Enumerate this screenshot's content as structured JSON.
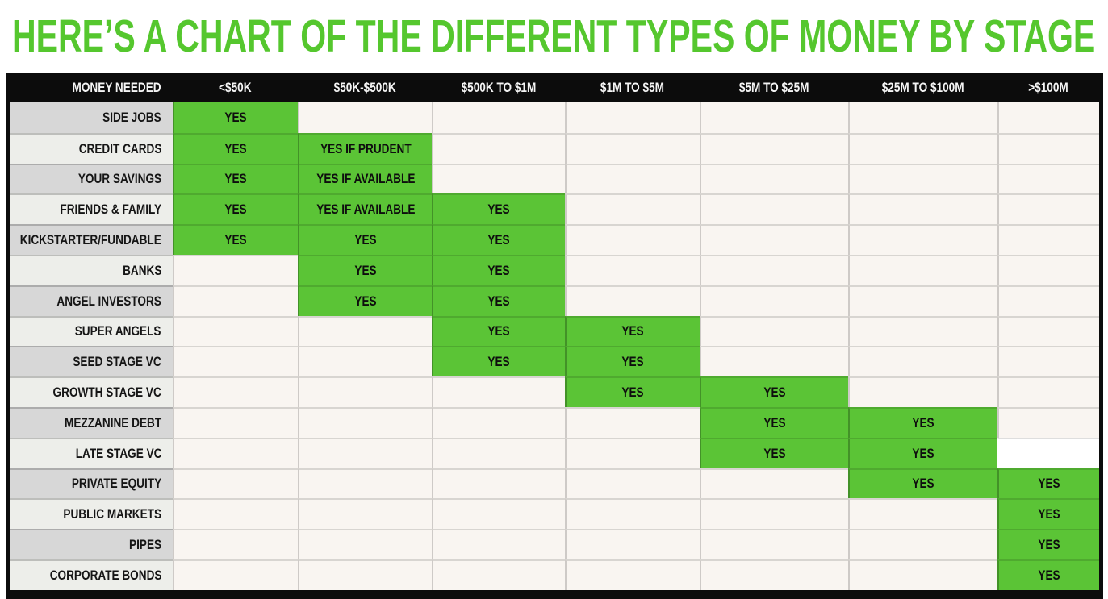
{
  "title": "HERE’S A CHART OF THE DIFFERENT TYPES OF MONEY BY STAGE",
  "colors": {
    "title_green": "#55c72e",
    "cell_green": "#5bc436",
    "header_bg": "#0c0c0c",
    "cell_bg": "#f9f5f1",
    "label_odd": "#d7d7d7",
    "label_even": "#edeeea"
  },
  "chart_data": {
    "type": "table",
    "title": "HERE’S A CHART OF THE DIFFERENT TYPES OF MONEY BY STAGE",
    "columns": [
      "MONEY NEEDED",
      "<$50K",
      "$50K-$500K",
      "$500K TO $1M",
      "$1M TO $5M",
      "$5M TO $25M",
      "$25M TO $100M",
      ">$100M"
    ],
    "rows": [
      {
        "label": "SIDE JOBS",
        "values": [
          "YES",
          "",
          "",
          "",
          "",
          "",
          ""
        ]
      },
      {
        "label": "CREDIT CARDS",
        "values": [
          "YES",
          "YES IF PRUDENT",
          "",
          "",
          "",
          "",
          ""
        ]
      },
      {
        "label": "YOUR SAVINGS",
        "values": [
          "YES",
          "YES IF AVAILABLE",
          "",
          "",
          "",
          "",
          ""
        ]
      },
      {
        "label": "FRIENDS & FAMILY",
        "values": [
          "YES",
          "YES IF AVAILABLE",
          "YES",
          "",
          "",
          "",
          ""
        ]
      },
      {
        "label": "KICKSTARTER/FUNDABLE",
        "values": [
          "YES",
          "YES",
          "YES",
          "",
          "",
          "",
          ""
        ]
      },
      {
        "label": "BANKS",
        "values": [
          "",
          "YES",
          "YES",
          "",
          "",
          "",
          ""
        ]
      },
      {
        "label": "ANGEL INVESTORS",
        "values": [
          "",
          "YES",
          "YES",
          "",
          "",
          "",
          ""
        ]
      },
      {
        "label": "SUPER ANGELS",
        "values": [
          "",
          "",
          "YES",
          "YES",
          "",
          "",
          ""
        ]
      },
      {
        "label": "SEED STAGE VC",
        "values": [
          "",
          "",
          "YES",
          "YES",
          "",
          "",
          ""
        ]
      },
      {
        "label": "GROWTH STAGE VC",
        "values": [
          "",
          "",
          "",
          "YES",
          "YES",
          "",
          ""
        ]
      },
      {
        "label": "MEZZANINE DEBT",
        "values": [
          "",
          "",
          "",
          "",
          "YES",
          "YES",
          ""
        ]
      },
      {
        "label": "LATE STAGE VC",
        "values": [
          "",
          "",
          "",
          "",
          "YES",
          "YES",
          ""
        ]
      },
      {
        "label": "PRIVATE EQUITY",
        "values": [
          "",
          "",
          "",
          "",
          "",
          "YES",
          "YES"
        ]
      },
      {
        "label": "PUBLIC MARKETS",
        "values": [
          "",
          "",
          "",
          "",
          "",
          "",
          "YES"
        ]
      },
      {
        "label": "PIPES",
        "values": [
          "",
          "",
          "",
          "",
          "",
          "",
          "YES"
        ]
      },
      {
        "label": "CORPORATE BONDS",
        "values": [
          "",
          "",
          "",
          "",
          "",
          "",
          "YES"
        ]
      }
    ],
    "white_cell": {
      "row_index": 11,
      "col_index": 6
    }
  }
}
